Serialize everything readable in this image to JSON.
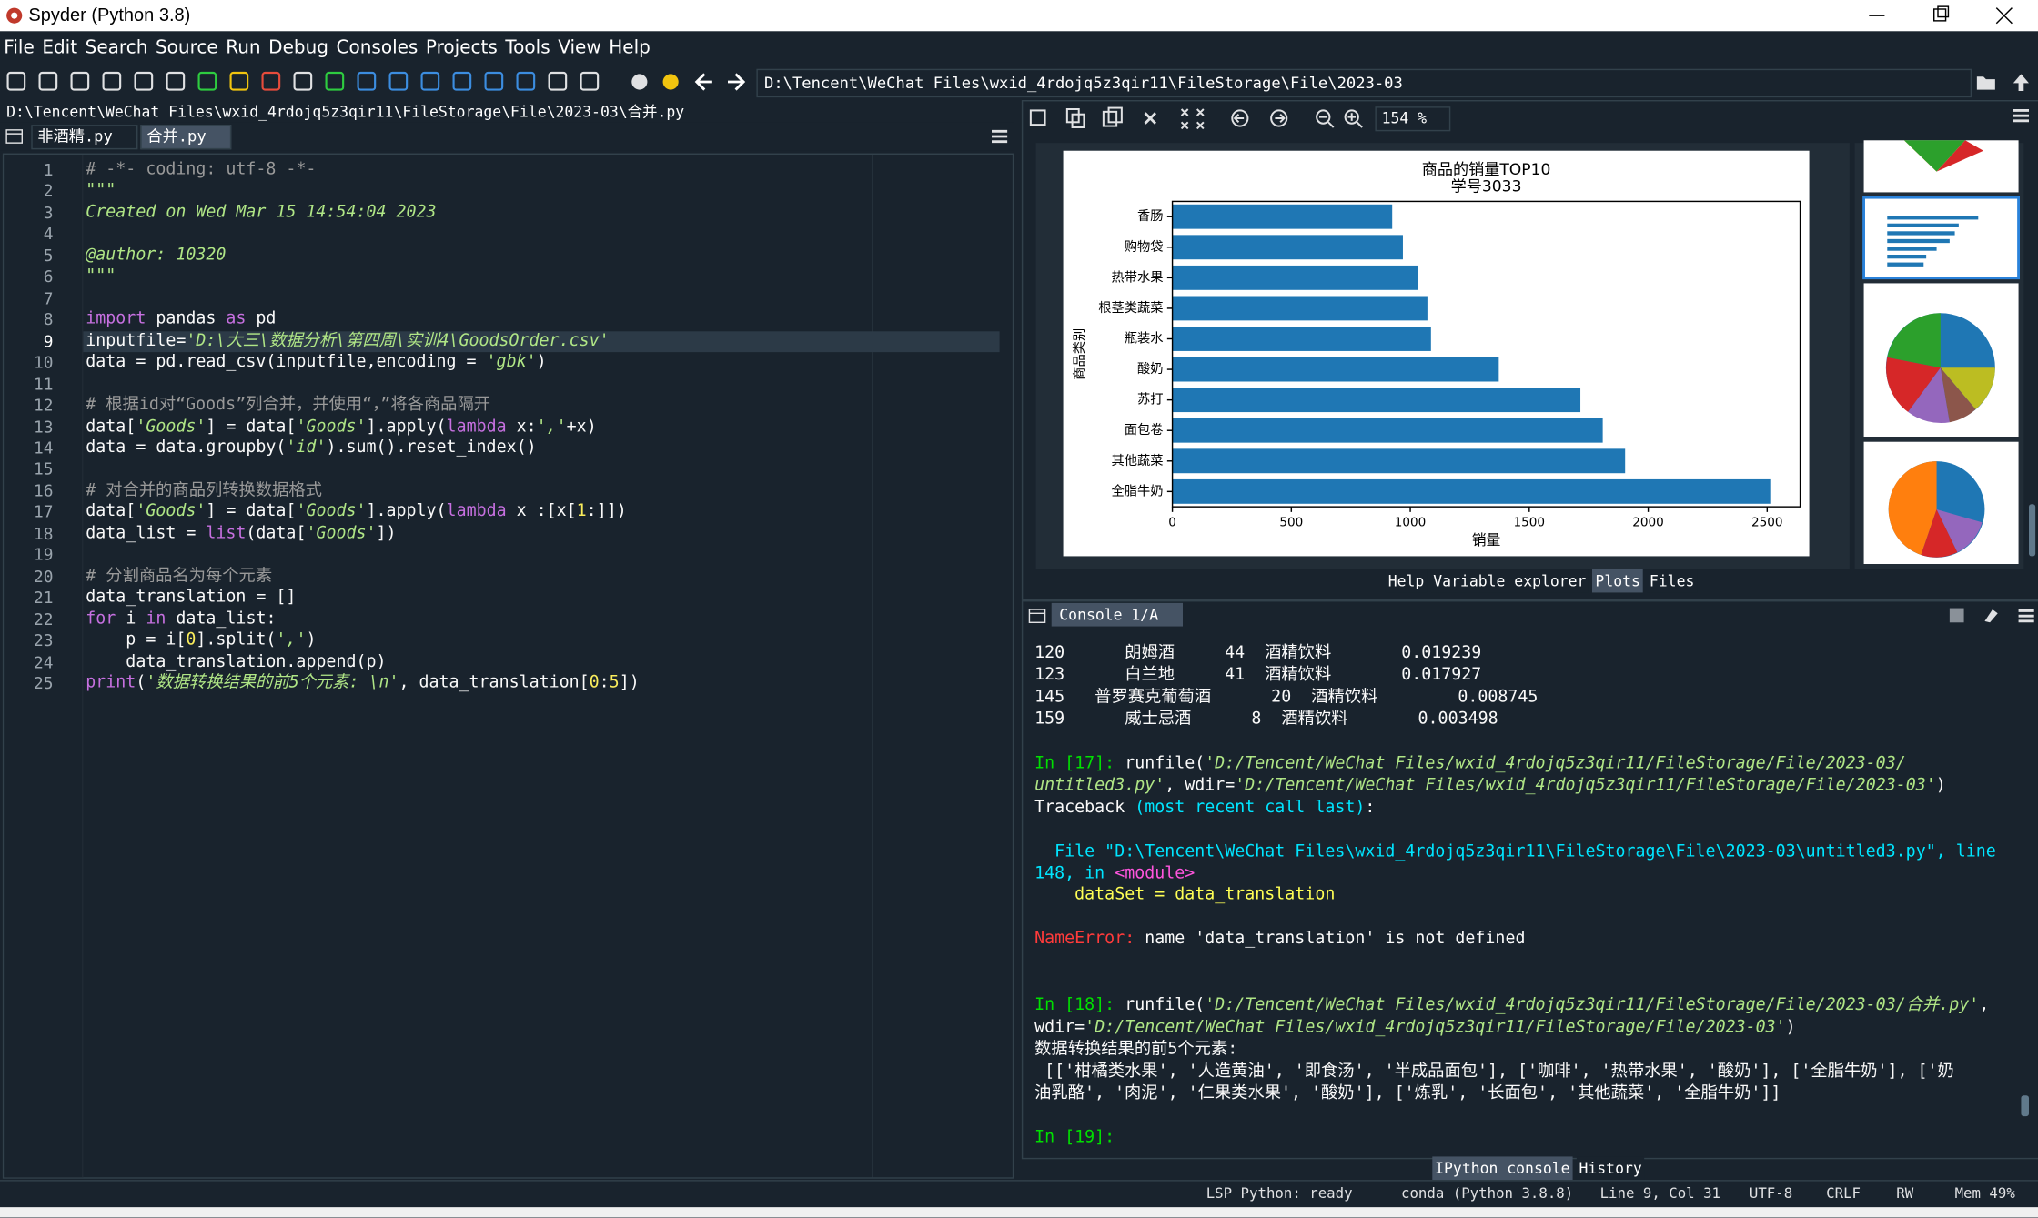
{
  "window_title": "Spyder (Python 3.8)",
  "menu": [
    "File",
    "Edit",
    "Search",
    "Source",
    "Run",
    "Debug",
    "Consoles",
    "Projects",
    "Tools",
    "View",
    "Help"
  ],
  "toolbar": {
    "working_directory": "D:\\Tencent\\WeChat Files\\wxid_4rdojq5z3qir11\\FileStorage\\File\\2023-03"
  },
  "editor": {
    "file_path": "D:\\Tencent\\WeChat Files\\wxid_4rdojq5z3qir11\\FileStorage\\File\\2023-03\\合并.py",
    "tabs": [
      "非酒精.py",
      "合并.py"
    ],
    "active_tab": 1,
    "current_line": 9,
    "lines": [
      {
        "n": 1,
        "segs": [
          [
            "# -*- coding: utf-8 -*-",
            "c"
          ]
        ]
      },
      {
        "n": 2,
        "segs": [
          [
            "\"\"\"",
            "s"
          ]
        ]
      },
      {
        "n": 3,
        "segs": [
          [
            "Created on Wed Mar 15 14:54:04 2023",
            "s"
          ]
        ]
      },
      {
        "n": 4,
        "segs": []
      },
      {
        "n": 5,
        "segs": [
          [
            "@author: 10320",
            "s"
          ]
        ]
      },
      {
        "n": 6,
        "segs": [
          [
            "\"\"\"",
            "s"
          ]
        ]
      },
      {
        "n": 7,
        "segs": []
      },
      {
        "n": 8,
        "segs": [
          [
            "import",
            "k"
          ],
          [
            " pandas ",
            "d"
          ],
          [
            "as",
            "k"
          ],
          [
            " pd",
            "d"
          ]
        ]
      },
      {
        "n": 9,
        "segs": [
          [
            "inputfile=",
            "d"
          ],
          [
            "'D:\\大三\\数据分析\\第四周\\实训4\\GoodsOrder.csv'",
            "s"
          ]
        ]
      },
      {
        "n": 10,
        "segs": [
          [
            "data = pd.read_csv(inputfile,encoding = ",
            "d"
          ],
          [
            "'gbk'",
            "s"
          ],
          [
            ")",
            "d"
          ]
        ]
      },
      {
        "n": 11,
        "segs": []
      },
      {
        "n": 12,
        "segs": [
          [
            "# 根据id对“Goods”列合并，并使用“，”将各商品隔开",
            "c"
          ]
        ]
      },
      {
        "n": 13,
        "segs": [
          [
            "data[",
            "d"
          ],
          [
            "'Goods'",
            "s"
          ],
          [
            "] = data[",
            "d"
          ],
          [
            "'Goods'",
            "s"
          ],
          [
            "].apply(",
            "d"
          ],
          [
            "lambda",
            "k"
          ],
          [
            " x:",
            "d"
          ],
          [
            "','",
            "s"
          ],
          [
            "+x)",
            "d"
          ]
        ]
      },
      {
        "n": 14,
        "segs": [
          [
            "data = data.groupby(",
            "d"
          ],
          [
            "'id'",
            "s"
          ],
          [
            ").sum().reset_index()",
            "d"
          ]
        ]
      },
      {
        "n": 15,
        "segs": []
      },
      {
        "n": 16,
        "segs": [
          [
            "# 对合并的商品列转换数据格式",
            "c"
          ]
        ]
      },
      {
        "n": 17,
        "segs": [
          [
            "data[",
            "d"
          ],
          [
            "'Goods'",
            "s"
          ],
          [
            "] = data[",
            "d"
          ],
          [
            "'Goods'",
            "s"
          ],
          [
            "].apply(",
            "d"
          ],
          [
            "lambda",
            "k"
          ],
          [
            " x :[x[",
            "d"
          ],
          [
            "1",
            "n"
          ],
          [
            ":]])",
            "d"
          ]
        ]
      },
      {
        "n": 18,
        "segs": [
          [
            "data_list = ",
            "d"
          ],
          [
            "list",
            "k"
          ],
          [
            "(data[",
            "d"
          ],
          [
            "'Goods'",
            "s"
          ],
          [
            "])",
            "d"
          ]
        ]
      },
      {
        "n": 19,
        "segs": []
      },
      {
        "n": 20,
        "segs": [
          [
            "# 分割商品名为每个元素",
            "c"
          ]
        ]
      },
      {
        "n": 21,
        "segs": [
          [
            "data_translation = []",
            "d"
          ]
        ]
      },
      {
        "n": 22,
        "segs": [
          [
            "for",
            "k"
          ],
          [
            " i ",
            "d"
          ],
          [
            "in",
            "k"
          ],
          [
            " data_list:",
            "d"
          ]
        ]
      },
      {
        "n": 23,
        "segs": [
          [
            "    p = i[",
            "d"
          ],
          [
            "0",
            "n"
          ],
          [
            "].split(",
            "d"
          ],
          [
            "','",
            "s"
          ],
          [
            ")",
            "d"
          ]
        ]
      },
      {
        "n": 24,
        "segs": [
          [
            "    data_translation.append(p)",
            "d"
          ]
        ]
      },
      {
        "n": 25,
        "segs": [
          [
            "print",
            "k"
          ],
          [
            "(",
            "d"
          ],
          [
            "'数据转换结果的前5个元素: \\n'",
            "s"
          ],
          [
            ", data_translation[",
            "d"
          ],
          [
            "0",
            "n"
          ],
          [
            ":",
            "d"
          ],
          [
            "5",
            "n"
          ],
          [
            "])",
            "d"
          ]
        ]
      }
    ]
  },
  "plots": {
    "zoom": "154 %"
  },
  "chart_data": {
    "type": "bar",
    "orientation": "horizontal",
    "title": "商品的销量TOP10",
    "subtitle": "学号3033",
    "x_label": "销量",
    "y_label": "商品类别",
    "categories": [
      "香肠",
      "购物袋",
      "热带水果",
      "根茎类蔬菜",
      "瓶装水",
      "酸奶",
      "苏打",
      "面包卷",
      "其他蔬菜",
      "全脂牛奶"
    ],
    "values": [
      924,
      969,
      1032,
      1072,
      1087,
      1372,
      1715,
      1809,
      1903,
      2513
    ],
    "color": "#1f77b4",
    "xlim": [
      0,
      2638.65
    ],
    "xticks": [
      0,
      500,
      1000,
      1500,
      2000,
      2500
    ]
  },
  "right_pane_tabs": {
    "items": [
      "Help",
      "Variable explorer",
      "Plots",
      "Files"
    ],
    "active": 2
  },
  "console": {
    "tab": "Console 1/A",
    "lines": [
      [
        [
          "120      朗姆酒     44  酒精饮料       0.019239",
          "d"
        ]
      ],
      [
        [
          "123      白兰地     41  酒精饮料       0.017927",
          "d"
        ]
      ],
      [
        [
          "145   普罗赛克葡萄酒      20  酒精饮料        0.008745",
          "d"
        ]
      ],
      [
        [
          "159      威士忌酒      8  酒精饮料       0.003498",
          "d"
        ]
      ],
      [],
      [
        [
          "In [17]: ",
          "g"
        ],
        [
          "runfile(",
          "d"
        ],
        [
          "'D:/Tencent/WeChat Files/wxid_4rdojq5z3qir11/FileStorage/File/2023-03/",
          "s"
        ]
      ],
      [
        [
          "untitled3.py'",
          "s"
        ],
        [
          ", wdir=",
          "d"
        ],
        [
          "'D:/Tencent/WeChat Files/wxid_4rdojq5z3qir11/FileStorage/File/2023-03'",
          "s"
        ],
        [
          ")",
          "d"
        ]
      ],
      [
        [
          "Traceback ",
          "d"
        ],
        [
          "(most recent call last)",
          "y"
        ],
        [
          ":",
          "d"
        ]
      ],
      [],
      [
        [
          "  File \"D:\\Tencent\\WeChat Files\\wxid_4rdojq5z3qir11\\FileStorage\\File\\2023-03\\untitled3.py\", line",
          "y"
        ]
      ],
      [
        [
          "148, in ",
          "y"
        ],
        [
          "<module>",
          "m"
        ]
      ],
      [
        [
          "    dataSet = data_translation",
          "w"
        ]
      ],
      [],
      [
        [
          "NameError:",
          "r"
        ],
        [
          " name 'data_translation' is not defined",
          "d"
        ]
      ],
      [],
      [],
      [
        [
          "In [18]: ",
          "g"
        ],
        [
          "runfile(",
          "d"
        ],
        [
          "'D:/Tencent/WeChat Files/wxid_4rdojq5z3qir11/FileStorage/File/2023-03/合并.py'",
          "s"
        ],
        [
          ",",
          "d"
        ]
      ],
      [
        [
          "wdir=",
          "d"
        ],
        [
          "'D:/Tencent/WeChat Files/wxid_4rdojq5z3qir11/FileStorage/File/2023-03'",
          "s"
        ],
        [
          ")",
          "d"
        ]
      ],
      [
        [
          "数据转换结果的前5个元素:",
          "d"
        ]
      ],
      [
        [
          " [['柑橘类水果', '人造黄油', '即食汤', '半成品面包'], ['咖啡', '热带水果', '酸奶'], ['全脂牛奶'], ['奶",
          "d"
        ]
      ],
      [
        [
          "油乳酪', '肉泥', '仁果类水果', '酸奶'], ['炼乳', '长面包', '其他蔬菜', '全脂牛奶']]",
          "d"
        ]
      ],
      [],
      [
        [
          "In [19]: ",
          "g"
        ]
      ]
    ],
    "tabs": {
      "items": [
        "IPython console",
        "History"
      ],
      "active": 0
    }
  },
  "status_bar": [
    "LSP Python: ready",
    "conda (Python 3.8.8)",
    "Line 9, Col 31",
    "UTF-8",
    "CRLF",
    "RW",
    "Mem 49%"
  ]
}
